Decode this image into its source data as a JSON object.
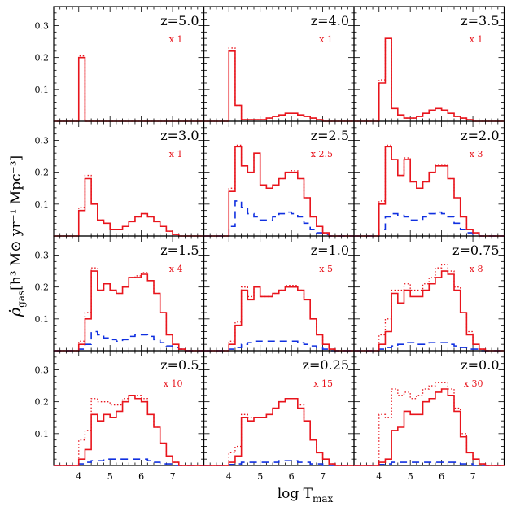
{
  "chart_data": {
    "type": "line",
    "layout": "4x3 grid of step-histogram panels",
    "xlabel": "log T",
    "xlabel_sub": "max",
    "ylabel_main": "ρ̇",
    "ylabel_main_sub": "gas",
    "ylabel_units": "[h³ M⊙ yr⁻¹ Mpc⁻³]",
    "xlim": [
      3.2,
      8.0
    ],
    "ylim": [
      0,
      0.36
    ],
    "bin_width": 0.2,
    "x_tick_labels": [
      "4",
      "5",
      "6",
      "7"
    ],
    "x_ticks": [
      4,
      5,
      6,
      7
    ],
    "y_tick_labels": [
      "0.1",
      "0.2",
      "0.3"
    ],
    "y_ticks": [
      0.1,
      0.2,
      0.3
    ],
    "colors": {
      "solid": "#e8141c",
      "dotted": "#e8141c",
      "dashed": "#1030e0"
    },
    "bin_edges": [
      3.2,
      3.4,
      3.6,
      3.8,
      4.0,
      4.2,
      4.4,
      4.6,
      4.8,
      5.0,
      5.2,
      5.4,
      5.6,
      5.8,
      6.0,
      6.2,
      6.4,
      6.6,
      6.8,
      7.0,
      7.2,
      7.4,
      7.6,
      7.8,
      8.0
    ],
    "panels": [
      {
        "z": "z=5.0",
        "scale": "x 1",
        "solid": [
          0,
          0,
          0,
          0,
          0.2,
          0,
          0,
          0,
          0,
          0,
          0,
          0,
          0,
          0,
          0,
          0,
          0,
          0,
          0,
          0,
          0,
          0,
          0,
          0
        ],
        "dotted": [
          0,
          0,
          0,
          0,
          0.205,
          0,
          0,
          0,
          0,
          0,
          0,
          0,
          0,
          0,
          0,
          0,
          0,
          0,
          0,
          0,
          0,
          0,
          0,
          0
        ],
        "dashed": null
      },
      {
        "z": "z=4.0",
        "scale": "x 1",
        "solid": [
          0,
          0,
          0,
          0,
          0.22,
          0.05,
          0.005,
          0.005,
          0.005,
          0.005,
          0.01,
          0.015,
          0.02,
          0.025,
          0.025,
          0.02,
          0.015,
          0.01,
          0.005,
          0,
          0,
          0,
          0,
          0
        ],
        "dotted": [
          0,
          0,
          0,
          0,
          0.23,
          0.05,
          0.005,
          0.005,
          0.005,
          0.005,
          0.01,
          0.015,
          0.02,
          0.025,
          0.025,
          0.02,
          0.015,
          0.01,
          0.005,
          0,
          0,
          0,
          0,
          0
        ],
        "dashed": null
      },
      {
        "z": "z=3.5",
        "scale": "x 1",
        "solid": [
          0,
          0,
          0,
          0,
          0.12,
          0.26,
          0.04,
          0.02,
          0.01,
          0.01,
          0.015,
          0.025,
          0.035,
          0.04,
          0.035,
          0.025,
          0.015,
          0.01,
          0.005,
          0,
          0,
          0,
          0,
          0
        ],
        "dotted": [
          0,
          0,
          0,
          0,
          0.13,
          0.26,
          0.04,
          0.02,
          0.01,
          0.01,
          0.015,
          0.025,
          0.035,
          0.04,
          0.035,
          0.025,
          0.015,
          0.01,
          0.005,
          0,
          0,
          0,
          0,
          0
        ],
        "dashed": null
      },
      {
        "z": "z=3.0",
        "scale": "x 1",
        "solid": [
          0,
          0,
          0,
          0,
          0.08,
          0.18,
          0.1,
          0.05,
          0.04,
          0.02,
          0.02,
          0.03,
          0.045,
          0.06,
          0.07,
          0.06,
          0.045,
          0.03,
          0.015,
          0.005,
          0,
          0,
          0,
          0
        ],
        "dotted": [
          0,
          0,
          0,
          0,
          0.09,
          0.19,
          0.1,
          0.05,
          0.04,
          0.02,
          0.02,
          0.03,
          0.045,
          0.06,
          0.07,
          0.06,
          0.045,
          0.03,
          0.015,
          0.005,
          0,
          0,
          0,
          0
        ],
        "dashed": null
      },
      {
        "z": "z=2.5",
        "scale": "x 2.5",
        "solid": [
          0,
          0,
          0,
          0,
          0.14,
          0.28,
          0.22,
          0.2,
          0.26,
          0.16,
          0.15,
          0.16,
          0.18,
          0.2,
          0.2,
          0.18,
          0.12,
          0.06,
          0.03,
          0.01,
          0,
          0,
          0,
          0
        ],
        "dotted": [
          0,
          0,
          0,
          0,
          0.15,
          0.285,
          0.22,
          0.2,
          0.26,
          0.16,
          0.15,
          0.16,
          0.18,
          0.2,
          0.205,
          0.18,
          0.12,
          0.06,
          0.03,
          0.01,
          0,
          0,
          0,
          0
        ],
        "dashed": [
          0,
          0,
          0,
          0,
          0.03,
          0.11,
          0.09,
          0.07,
          0.06,
          0.05,
          0.05,
          0.06,
          0.07,
          0.075,
          0.07,
          0.06,
          0.04,
          0.02,
          0.01,
          0.005,
          0,
          0,
          0,
          0
        ]
      },
      {
        "z": "z=2.0",
        "scale": "x 3",
        "solid": [
          0,
          0,
          0,
          0,
          0.1,
          0.28,
          0.24,
          0.19,
          0.24,
          0.17,
          0.15,
          0.17,
          0.2,
          0.22,
          0.22,
          0.18,
          0.12,
          0.06,
          0.02,
          0.01,
          0,
          0,
          0,
          0
        ],
        "dotted": [
          0,
          0,
          0,
          0,
          0.11,
          0.285,
          0.24,
          0.19,
          0.245,
          0.17,
          0.15,
          0.17,
          0.2,
          0.225,
          0.225,
          0.18,
          0.12,
          0.06,
          0.02,
          0.01,
          0,
          0,
          0,
          0
        ],
        "dashed": [
          0,
          0,
          0,
          0,
          0.02,
          0.06,
          0.07,
          0.065,
          0.06,
          0.05,
          0.05,
          0.06,
          0.07,
          0.075,
          0.07,
          0.06,
          0.04,
          0.02,
          0.01,
          0.005,
          0,
          0,
          0,
          0
        ]
      },
      {
        "z": "z=1.5",
        "scale": "x 4",
        "solid": [
          0,
          0,
          0,
          0,
          0.02,
          0.1,
          0.25,
          0.19,
          0.21,
          0.19,
          0.18,
          0.2,
          0.23,
          0.23,
          0.24,
          0.22,
          0.18,
          0.12,
          0.05,
          0.02,
          0.005,
          0,
          0,
          0
        ],
        "dotted": [
          0,
          0,
          0,
          0,
          0.03,
          0.12,
          0.26,
          0.19,
          0.21,
          0.19,
          0.18,
          0.2,
          0.23,
          0.235,
          0.245,
          0.22,
          0.18,
          0.12,
          0.05,
          0.02,
          0.005,
          0,
          0,
          0
        ],
        "dashed": [
          0,
          0,
          0,
          0,
          0.005,
          0.02,
          0.06,
          0.05,
          0.04,
          0.035,
          0.03,
          0.035,
          0.045,
          0.05,
          0.05,
          0.045,
          0.035,
          0.025,
          0.015,
          0.01,
          0.005,
          0,
          0,
          0
        ]
      },
      {
        "z": "z=1.0",
        "scale": "x 5",
        "solid": [
          0,
          0,
          0,
          0,
          0.02,
          0.08,
          0.19,
          0.16,
          0.2,
          0.17,
          0.17,
          0.18,
          0.19,
          0.2,
          0.2,
          0.19,
          0.16,
          0.1,
          0.05,
          0.02,
          0.005,
          0,
          0,
          0
        ],
        "dotted": [
          0,
          0,
          0,
          0,
          0.03,
          0.09,
          0.2,
          0.17,
          0.2,
          0.17,
          0.17,
          0.18,
          0.19,
          0.205,
          0.205,
          0.19,
          0.16,
          0.1,
          0.05,
          0.02,
          0.005,
          0,
          0,
          0
        ],
        "dashed": [
          0,
          0,
          0,
          0,
          0.005,
          0.01,
          0.02,
          0.025,
          0.03,
          0.03,
          0.03,
          0.03,
          0.03,
          0.03,
          0.03,
          0.025,
          0.02,
          0.015,
          0.01,
          0.005,
          0,
          0,
          0,
          0
        ]
      },
      {
        "z": "z=0.75",
        "scale": "x 8",
        "solid": [
          0,
          0,
          0,
          0,
          0.02,
          0.06,
          0.18,
          0.15,
          0.19,
          0.17,
          0.17,
          0.19,
          0.21,
          0.23,
          0.25,
          0.24,
          0.19,
          0.12,
          0.05,
          0.02,
          0.005,
          0,
          0,
          0
        ],
        "dotted": [
          0,
          0,
          0,
          0,
          0.05,
          0.1,
          0.19,
          0.19,
          0.21,
          0.19,
          0.19,
          0.21,
          0.23,
          0.26,
          0.27,
          0.25,
          0.2,
          0.12,
          0.06,
          0.02,
          0.005,
          0,
          0,
          0
        ],
        "dashed": [
          0,
          0,
          0,
          0,
          0.005,
          0.01,
          0.015,
          0.02,
          0.025,
          0.025,
          0.02,
          0.02,
          0.025,
          0.025,
          0.025,
          0.02,
          0.015,
          0.01,
          0.005,
          0.005,
          0,
          0,
          0,
          0
        ]
      },
      {
        "z": "z=0.5",
        "scale": "x 10",
        "solid": [
          0,
          0,
          0,
          0,
          0.02,
          0.05,
          0.16,
          0.14,
          0.16,
          0.15,
          0.17,
          0.2,
          0.22,
          0.21,
          0.2,
          0.16,
          0.12,
          0.07,
          0.03,
          0.01,
          0,
          0,
          0,
          0
        ],
        "dotted": [
          0,
          0,
          0,
          0,
          0.08,
          0.11,
          0.21,
          0.2,
          0.2,
          0.19,
          0.19,
          0.21,
          0.22,
          0.22,
          0.21,
          0.16,
          0.12,
          0.07,
          0.03,
          0.01,
          0,
          0,
          0,
          0
        ],
        "dashed": [
          0,
          0,
          0,
          0,
          0.005,
          0.01,
          0.015,
          0.015,
          0.02,
          0.02,
          0.02,
          0.02,
          0.02,
          0.02,
          0.02,
          0.015,
          0.01,
          0.005,
          0.005,
          0,
          0,
          0,
          0,
          0
        ]
      },
      {
        "z": "z=0.25",
        "scale": "x 15",
        "solid": [
          0,
          0,
          0,
          0,
          0.01,
          0.03,
          0.15,
          0.14,
          0.15,
          0.15,
          0.16,
          0.18,
          0.2,
          0.21,
          0.21,
          0.18,
          0.14,
          0.08,
          0.04,
          0.02,
          0.005,
          0,
          0,
          0
        ],
        "dotted": [
          0,
          0,
          0,
          0,
          0.04,
          0.06,
          0.16,
          0.15,
          0.15,
          0.15,
          0.16,
          0.18,
          0.2,
          0.21,
          0.21,
          0.19,
          0.14,
          0.08,
          0.04,
          0.02,
          0.005,
          0,
          0,
          0
        ],
        "dashed": [
          0,
          0,
          0,
          0,
          0.003,
          0.005,
          0.01,
          0.01,
          0.01,
          0.01,
          0.01,
          0.01,
          0.015,
          0.015,
          0.015,
          0.01,
          0.01,
          0.005,
          0.005,
          0,
          0,
          0,
          0,
          0
        ]
      },
      {
        "z": "z=0.0",
        "scale": "x 30",
        "solid": [
          0,
          0,
          0,
          0,
          0.01,
          0.02,
          0.11,
          0.12,
          0.17,
          0.16,
          0.16,
          0.2,
          0.21,
          0.23,
          0.24,
          0.22,
          0.17,
          0.09,
          0.04,
          0.02,
          0.005,
          0,
          0,
          0
        ],
        "dotted": [
          0,
          0,
          0,
          0,
          0.16,
          0.15,
          0.24,
          0.22,
          0.23,
          0.21,
          0.22,
          0.24,
          0.25,
          0.26,
          0.26,
          0.24,
          0.18,
          0.1,
          0.04,
          0.02,
          0.005,
          0,
          0,
          0
        ],
        "dashed": [
          0,
          0,
          0,
          0,
          0.003,
          0.005,
          0.01,
          0.01,
          0.01,
          0.01,
          0.01,
          0.01,
          0.01,
          0.01,
          0.01,
          0.01,
          0.01,
          0.005,
          0.005,
          0,
          0,
          0,
          0,
          0
        ]
      }
    ]
  }
}
